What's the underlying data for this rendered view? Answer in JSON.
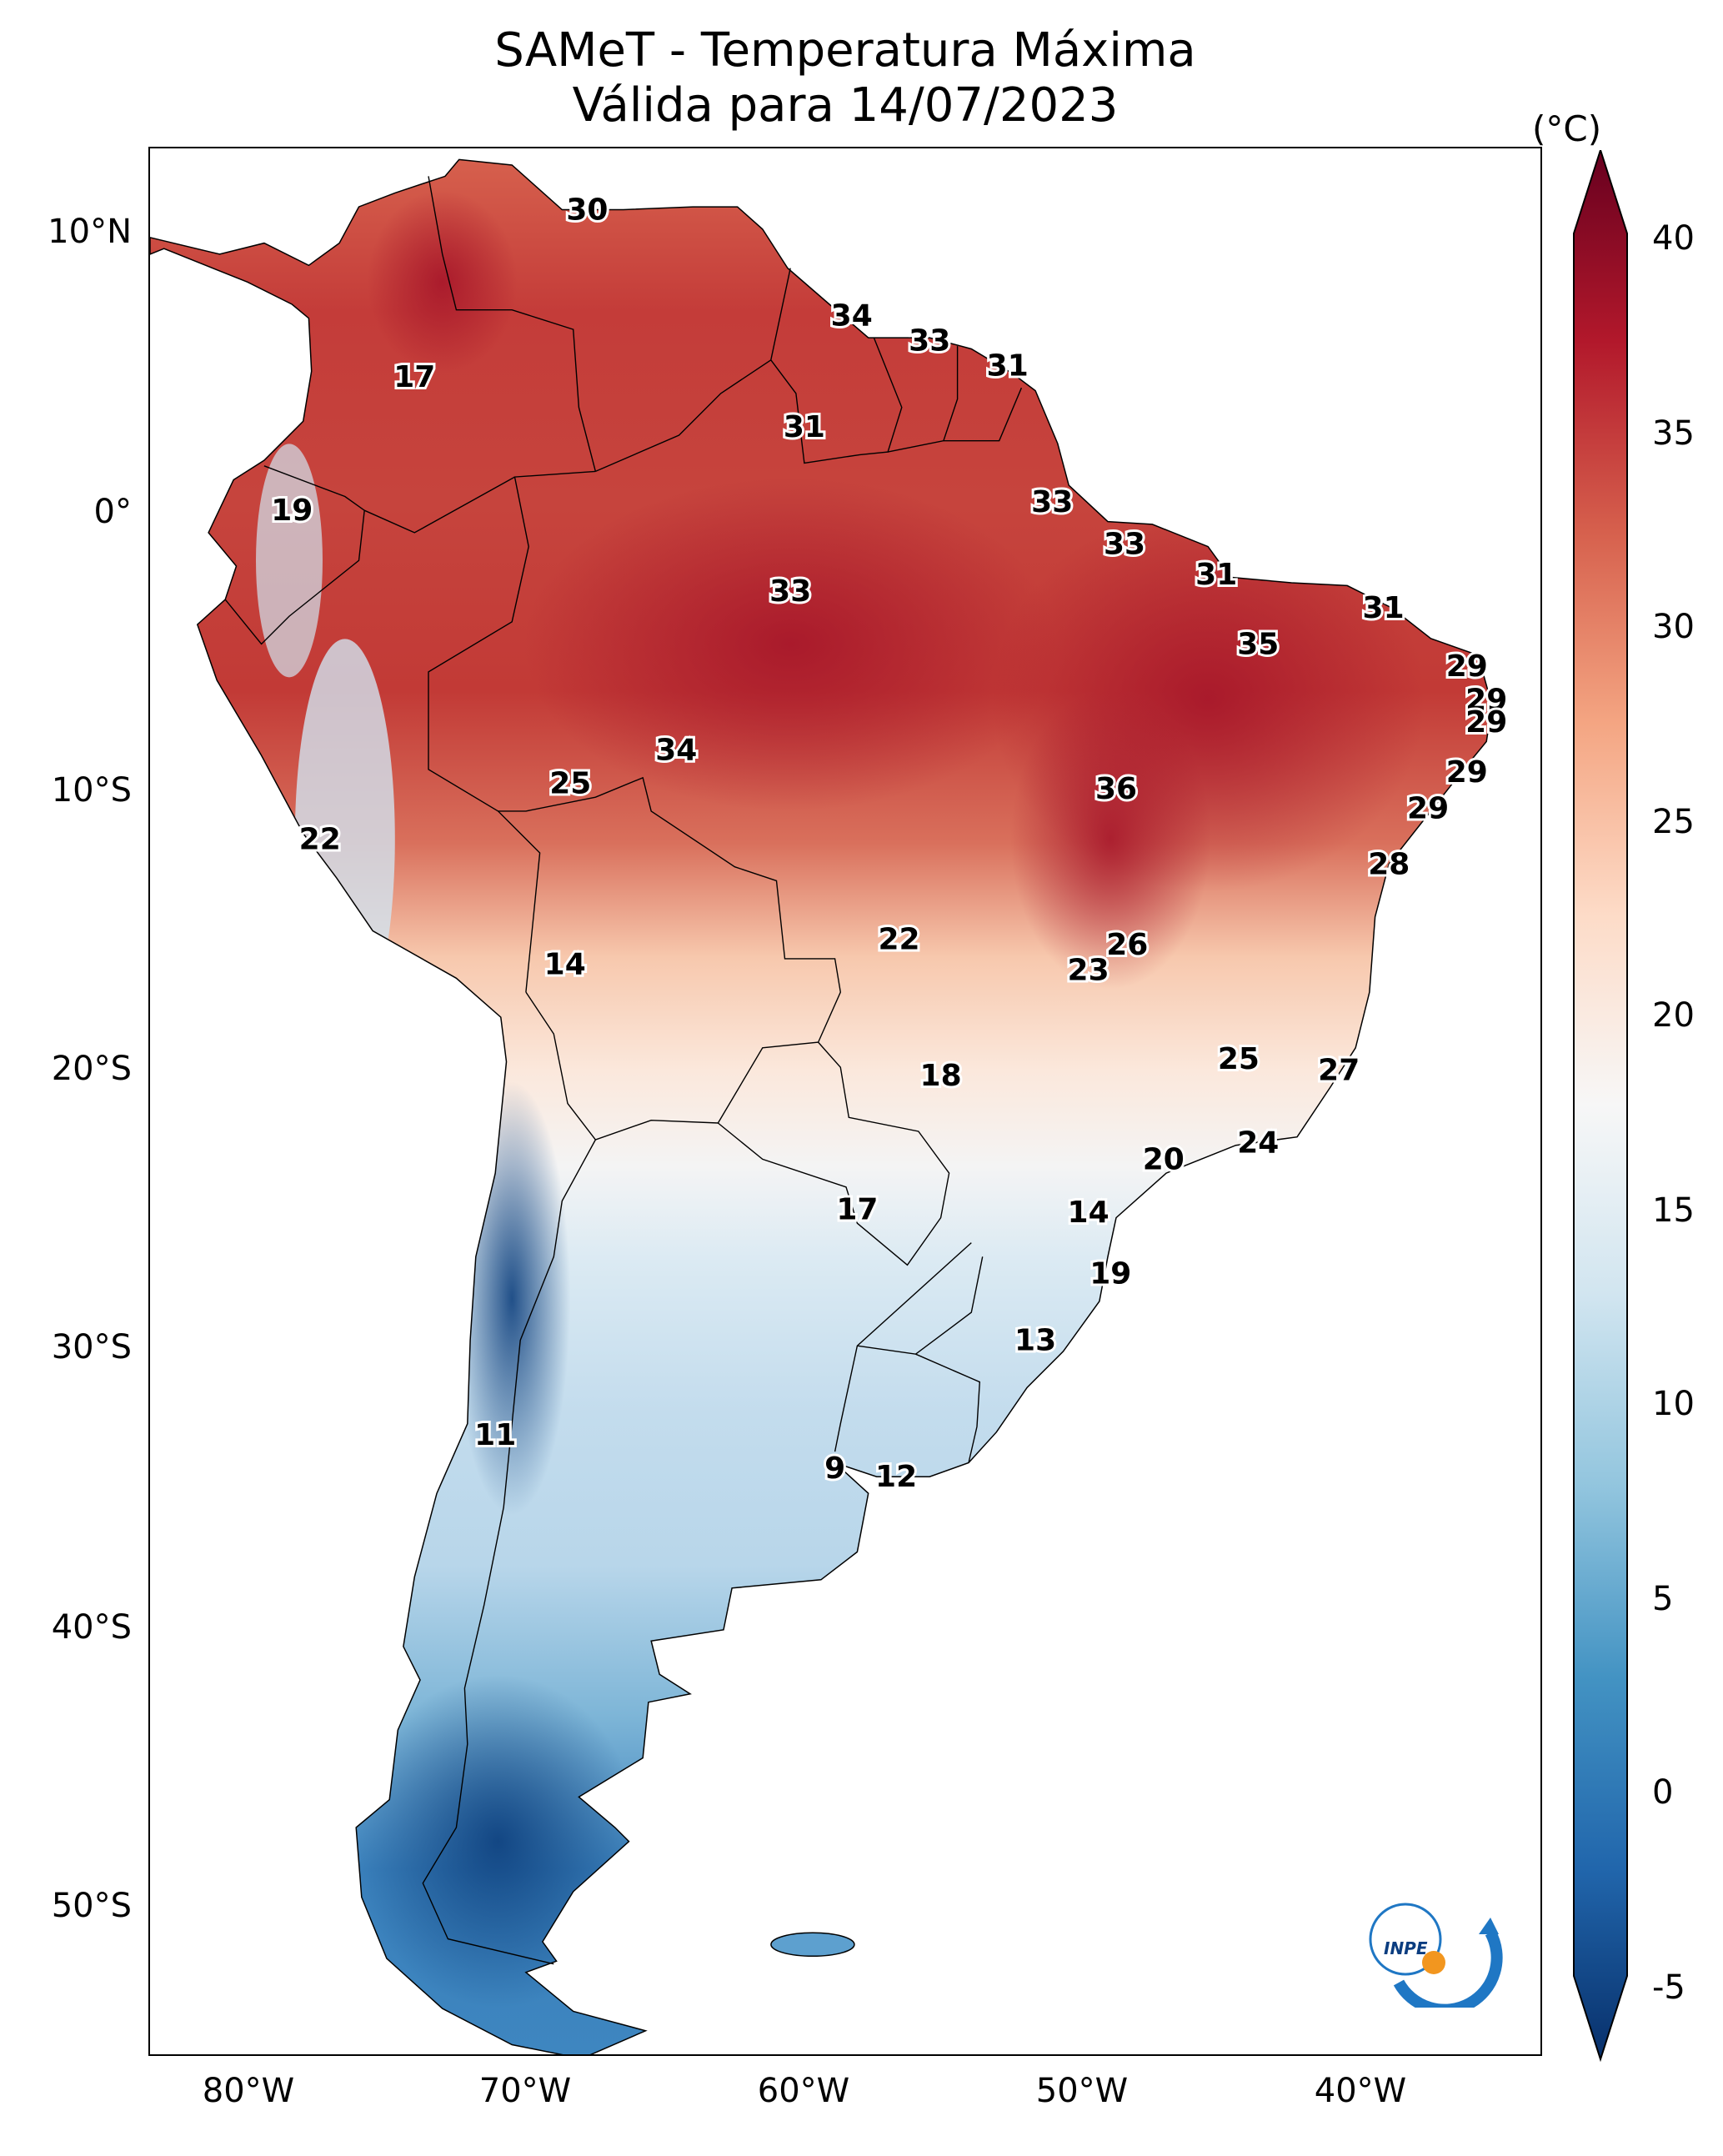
{
  "title": {
    "line1": "SAMeT - Temperatura Máxima",
    "line2": "Válida para 14/07/2023"
  },
  "axes": {
    "latitude_labels": [
      "10°N",
      "0°",
      "10°S",
      "20°S",
      "30°S",
      "40°S",
      "50°S"
    ],
    "longitude_labels": [
      "80°W",
      "70°W",
      "60°W",
      "50°W",
      "40°W"
    ]
  },
  "colorbar": {
    "unit": "(°C)",
    "min": -5,
    "max": 40,
    "extend": "both",
    "tick_labels": [
      "40",
      "35",
      "30",
      "25",
      "20",
      "15",
      "10",
      "5",
      "0",
      "-5"
    ],
    "colormap": [
      "#08306b",
      "#2166ac",
      "#4393c3",
      "#92c5de",
      "#d1e5f0",
      "#f7f7f7",
      "#fddbc7",
      "#f4a582",
      "#d6604d",
      "#b2182b",
      "#67001f"
    ]
  },
  "logo": {
    "text": "INPE"
  },
  "stations": [
    {
      "name": "t30-north-venezuela",
      "value": "30",
      "lon": -67.3,
      "lat": 10.6
    },
    {
      "name": "t34-guyana",
      "value": "34",
      "lon": -57.8,
      "lat": 6.8
    },
    {
      "name": "t33-suriname",
      "value": "33",
      "lon": -55.0,
      "lat": 5.9
    },
    {
      "name": "t31-french-guiana",
      "value": "31",
      "lon": -52.2,
      "lat": 5.0
    },
    {
      "name": "t17-colombia",
      "value": "17",
      "lon": -73.5,
      "lat": 4.6
    },
    {
      "name": "t31-roraima",
      "value": "31",
      "lon": -59.5,
      "lat": 2.8
    },
    {
      "name": "t19-ecuador",
      "value": "19",
      "lon": -77.9,
      "lat": -0.2
    },
    {
      "name": "t33-amapa",
      "value": "33",
      "lon": -50.6,
      "lat": 0.1
    },
    {
      "name": "t33-para-coast",
      "value": "33",
      "lon": -48.0,
      "lat": -1.4
    },
    {
      "name": "t31-maranhao",
      "value": "31",
      "lon": -44.7,
      "lat": -2.5
    },
    {
      "name": "t33-amazonas",
      "value": "33",
      "lon": -60.0,
      "lat": -3.1
    },
    {
      "name": "t31-ceara",
      "value": "31",
      "lon": -38.7,
      "lat": -3.7
    },
    {
      "name": "t35-piaui",
      "value": "35",
      "lon": -43.2,
      "lat": -5.0
    },
    {
      "name": "t29-rn",
      "value": "29",
      "lon": -35.7,
      "lat": -5.8
    },
    {
      "name": "t29-pb",
      "value": "29",
      "lon": -35.0,
      "lat": -7.0
    },
    {
      "name": "t29-pe",
      "value": "29",
      "lon": -35.0,
      "lat": -7.8
    },
    {
      "name": "t34-rondonia",
      "value": "34",
      "lon": -64.1,
      "lat": -8.8
    },
    {
      "name": "t29-al",
      "value": "29",
      "lon": -35.7,
      "lat": -9.6
    },
    {
      "name": "t25-acre",
      "value": "25",
      "lon": -67.9,
      "lat": -10.0
    },
    {
      "name": "t36-tocantins",
      "value": "36",
      "lon": -48.3,
      "lat": -10.2
    },
    {
      "name": "t29-se",
      "value": "29",
      "lon": -37.1,
      "lat": -10.9
    },
    {
      "name": "t22-peru",
      "value": "22",
      "lon": -76.9,
      "lat": -12.0
    },
    {
      "name": "t28-bahia",
      "value": "28",
      "lon": -38.5,
      "lat": -12.9
    },
    {
      "name": "t22-mato-grosso",
      "value": "22",
      "lon": -56.1,
      "lat": -15.6
    },
    {
      "name": "t26-brasilia",
      "value": "26",
      "lon": -47.9,
      "lat": -15.8
    },
    {
      "name": "t14-bolivia",
      "value": "14",
      "lon": -68.1,
      "lat": -16.5
    },
    {
      "name": "t23-goias",
      "value": "23",
      "lon": -49.3,
      "lat": -16.7
    },
    {
      "name": "t25-minas-gerais",
      "value": "25",
      "lon": -43.9,
      "lat": -19.9
    },
    {
      "name": "t27-espirito-santo",
      "value": "27",
      "lon": -40.3,
      "lat": -20.3
    },
    {
      "name": "t18-mato-grosso-do-sul",
      "value": "18",
      "lon": -54.6,
      "lat": -20.5
    },
    {
      "name": "t24-rio",
      "value": "24",
      "lon": -43.2,
      "lat": -22.9
    },
    {
      "name": "t20-sao-paulo",
      "value": "20",
      "lon": -46.6,
      "lat": -23.5
    },
    {
      "name": "t17-paraguay",
      "value": "17",
      "lon": -57.6,
      "lat": -25.3
    },
    {
      "name": "t14-parana",
      "value": "14",
      "lon": -49.3,
      "lat": -25.4
    },
    {
      "name": "t19-santa-catarina",
      "value": "19",
      "lon": -48.5,
      "lat": -27.6
    },
    {
      "name": "t13-rio-grande-do-sul",
      "value": "13",
      "lon": -51.2,
      "lat": -30.0
    },
    {
      "name": "t11-chile",
      "value": "11",
      "lon": -70.6,
      "lat": -33.4
    },
    {
      "name": "t9-buenos-aires",
      "value": "9",
      "lon": -58.4,
      "lat": -34.6
    },
    {
      "name": "t12-uruguay",
      "value": "12",
      "lon": -56.2,
      "lat": -34.9
    }
  ]
}
